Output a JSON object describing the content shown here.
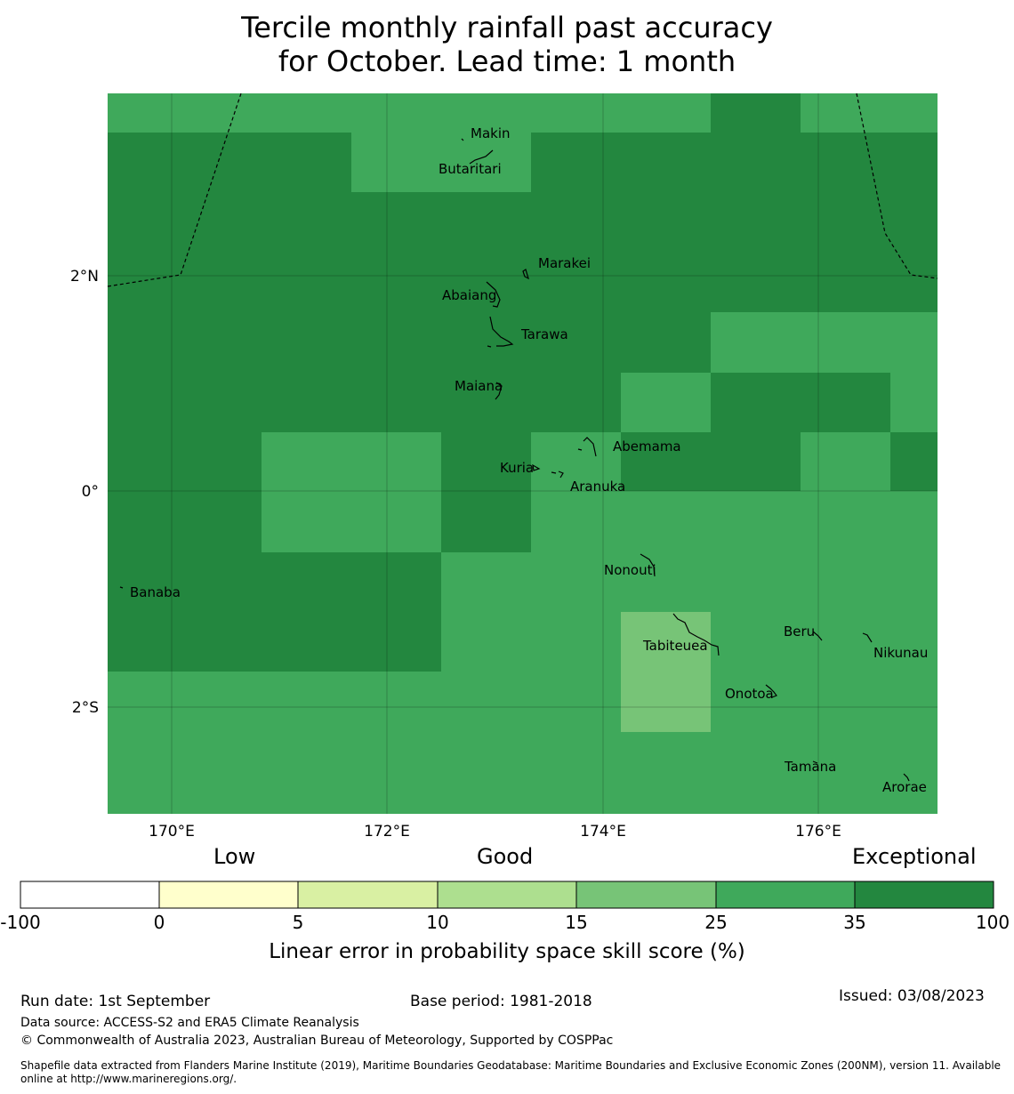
{
  "title": {
    "line1": "Tercile monthly rainfall past accuracy",
    "line2": "for October. Lead time: 1 month"
  },
  "colors": {
    "exceptional": "#23873f",
    "good_high": "#3fa95b",
    "good_mid": "#77c477",
    "band_10_15": "#addf8f",
    "band_5_10": "#d9f0a3",
    "band_0_5": "#ffffcc",
    "band_neg": "#ffffff"
  },
  "map": {
    "lon_ticks": [
      "170°E",
      "172°E",
      "174°E",
      "176°E"
    ],
    "lat_ticks": [
      "2°N",
      "0°",
      "2°S"
    ],
    "places": [
      {
        "name": "Makin"
      },
      {
        "name": "Butaritari"
      },
      {
        "name": "Marakei"
      },
      {
        "name": "Abaiang"
      },
      {
        "name": "Tarawa"
      },
      {
        "name": "Maiana"
      },
      {
        "name": "Abemama"
      },
      {
        "name": "Kuria"
      },
      {
        "name": "Aranuka"
      },
      {
        "name": "Nonouti"
      },
      {
        "name": "Banaba"
      },
      {
        "name": "Tabiteuea"
      },
      {
        "name": "Beru"
      },
      {
        "name": "Nikunau"
      },
      {
        "name": "Onotoa"
      },
      {
        "name": "Tamana"
      },
      {
        "name": "Arorae"
      }
    ]
  },
  "legend": {
    "categories": [
      "Low",
      "Good",
      "Exceptional"
    ],
    "ticks": [
      "-100",
      "0",
      "5",
      "10",
      "15",
      "25",
      "35",
      "100"
    ],
    "label": "Linear error in probability space skill score (%)"
  },
  "footer": {
    "run_date": "Run date: 1st September",
    "base_period": "Base period: 1981-2018",
    "issued": "Issued: 03/08/2023",
    "data_source": "Data source: ACCESS-S2 and ERA5 Climate Reanalysis",
    "copyright": "© Commonwealth of Australia 2023, Australian Bureau of Meteorology, Supported by COSPPac",
    "shapefile": "Shapefile data extracted from Flanders Marine Institute (2019), Maritime Boundaries Geodatabase: Maritime Boundaries and Exclusive Economic Zones (200NM), version 11. Available online at http://www.marineregions.org/."
  }
}
